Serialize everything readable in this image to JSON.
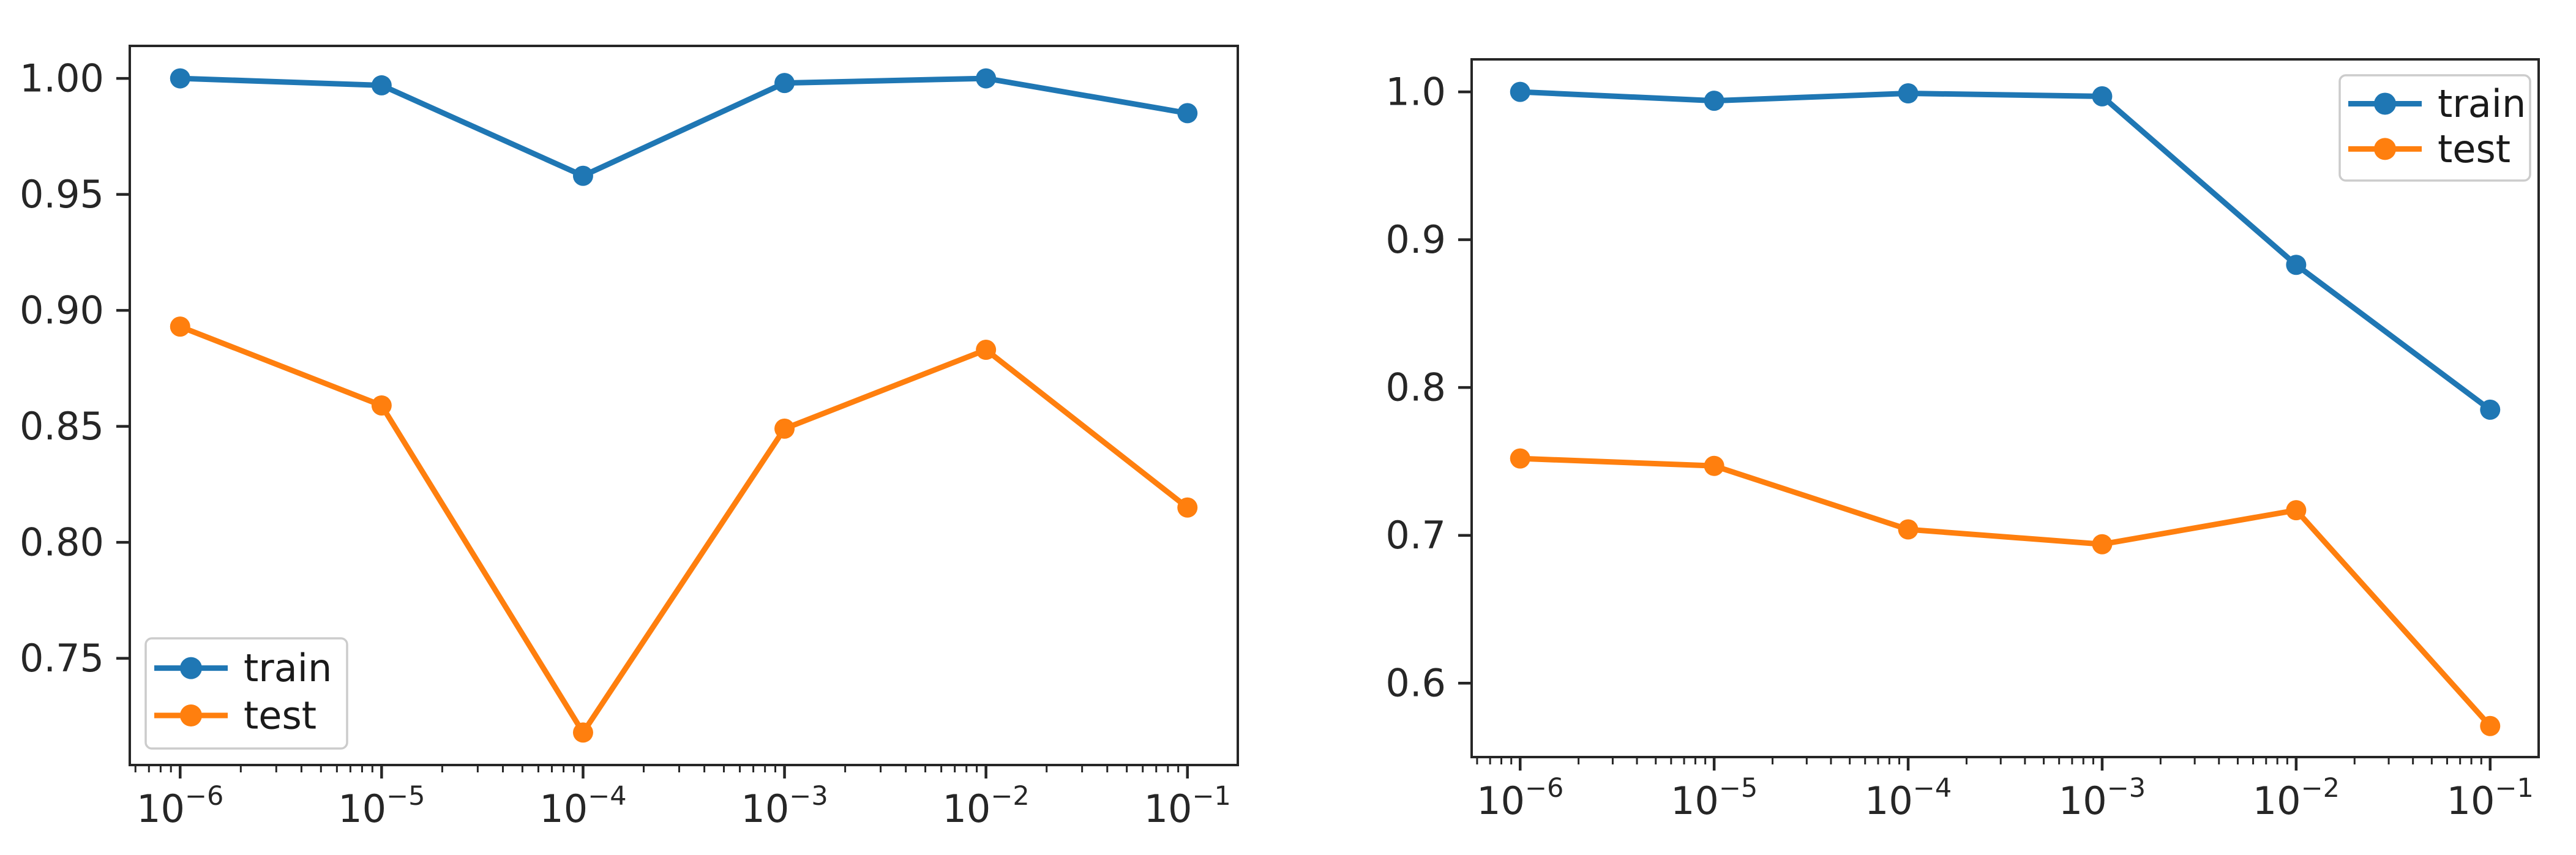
{
  "figure": {
    "background": "#ffffff",
    "colors": {
      "train": "#1f77b4",
      "test": "#ff7f0e",
      "axis": "#262626",
      "tick_label": "#262626",
      "legend_text": "#1a1a1a",
      "legend_border": "#cccccc",
      "legend_bg": "#ffffff"
    },
    "chart_data": [
      {
        "type": "line",
        "title": "",
        "xlabel": "",
        "ylabel": "",
        "x_scale": "log",
        "grid": false,
        "x": [
          1e-06,
          1e-05,
          0.0001,
          0.001,
          0.01,
          0.1
        ],
        "x_tick_exponents": [
          -6,
          -5,
          -4,
          -3,
          -2,
          -1
        ],
        "x_tick_base": "10",
        "xlim_log10": [
          -6.25,
          -0.75
        ],
        "ylim": [
          0.704,
          1.014
        ],
        "y_ticks": [
          {
            "value": 1.0,
            "label": "1.00"
          },
          {
            "value": 0.95,
            "label": "0.95"
          },
          {
            "value": 0.9,
            "label": "0.90"
          },
          {
            "value": 0.85,
            "label": "0.85"
          },
          {
            "value": 0.8,
            "label": "0.80"
          },
          {
            "value": 0.75,
            "label": "0.75"
          }
        ],
        "series": [
          {
            "name": "train",
            "color_key": "train",
            "values": [
              1.0,
              0.997,
              0.958,
              0.998,
              1.0,
              0.985
            ]
          },
          {
            "name": "test",
            "color_key": "test",
            "values": [
              0.893,
              0.859,
              0.718,
              0.849,
              0.883,
              0.815
            ]
          }
        ],
        "legend": {
          "position": "lower-left",
          "entries": [
            "train",
            "test"
          ]
        }
      },
      {
        "type": "line",
        "title": "",
        "xlabel": "",
        "ylabel": "",
        "x_scale": "log",
        "grid": false,
        "x": [
          1e-06,
          1e-05,
          0.0001,
          0.001,
          0.01,
          0.1
        ],
        "x_tick_exponents": [
          -6,
          -5,
          -4,
          -3,
          -2,
          -1
        ],
        "x_tick_base": "10",
        "xlim_log10": [
          -6.25,
          -0.75
        ],
        "ylim": [
          0.55,
          1.022
        ],
        "y_ticks": [
          {
            "value": 1.0,
            "label": "1.0"
          },
          {
            "value": 0.9,
            "label": "0.9"
          },
          {
            "value": 0.8,
            "label": "0.8"
          },
          {
            "value": 0.7,
            "label": "0.7"
          },
          {
            "value": 0.6,
            "label": "0.6"
          }
        ],
        "series": [
          {
            "name": "train",
            "color_key": "train",
            "values": [
              1.0,
              0.994,
              0.999,
              0.997,
              0.883,
              0.785
            ]
          },
          {
            "name": "test",
            "color_key": "test",
            "values": [
              0.752,
              0.747,
              0.704,
              0.694,
              0.717,
              0.571
            ]
          }
        ],
        "legend": {
          "position": "upper-right",
          "entries": [
            "train",
            "test"
          ]
        }
      }
    ]
  }
}
